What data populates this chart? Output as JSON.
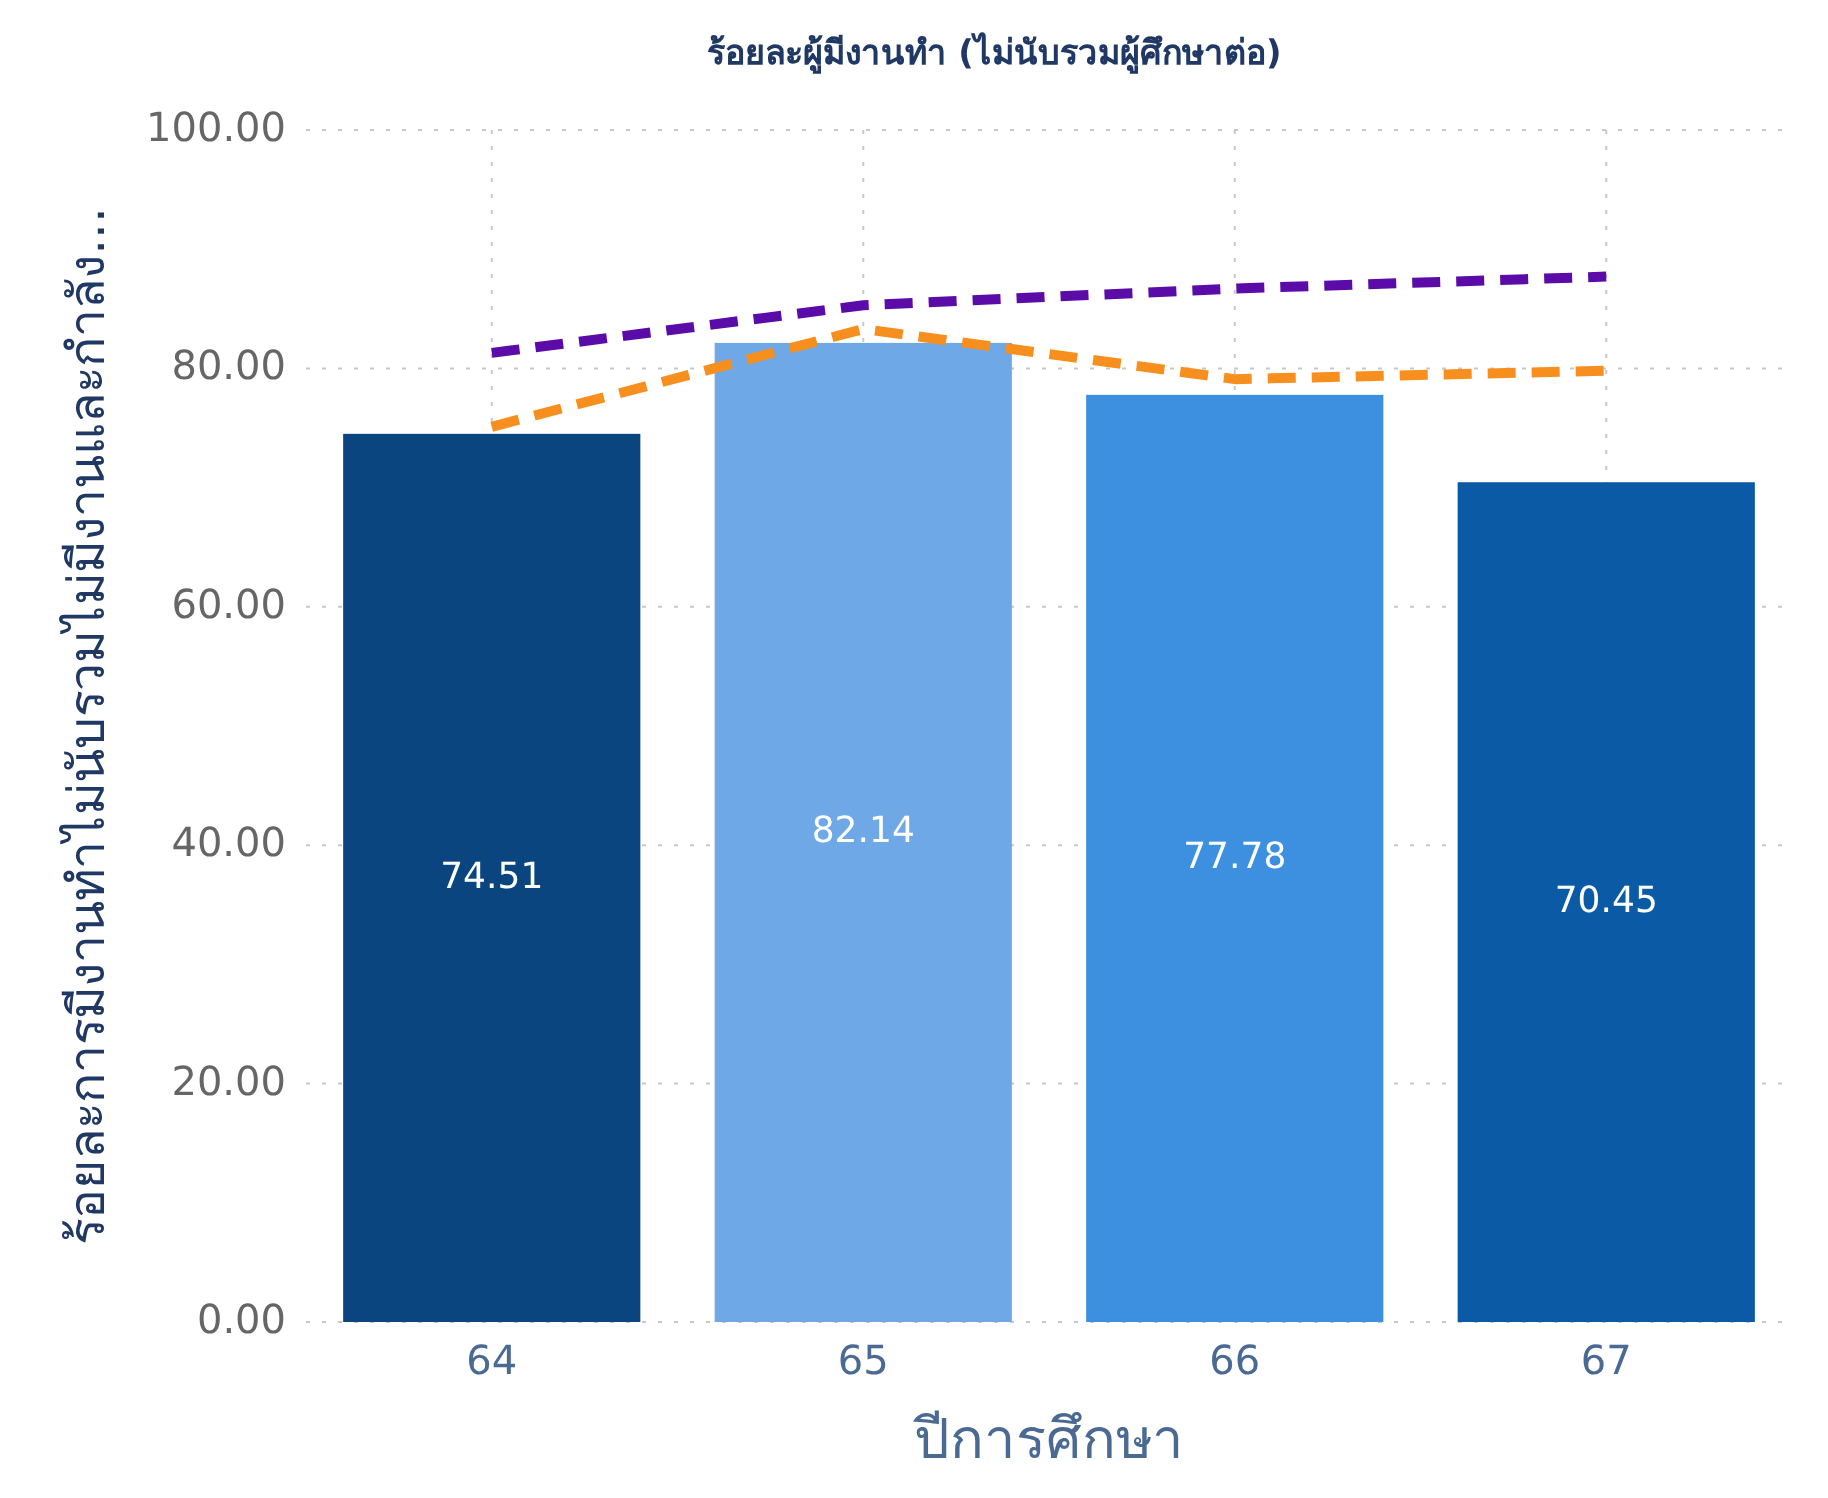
{
  "chart_data": {
    "type": "bar",
    "title": "ร้อยละผู้มีงานทำ (ไม่นับรวมผู้ศึกษาต่อ)",
    "xlabel": "ปีการศึกษา",
    "ylabel": "ร้อยละการมีงานทำไม่นับรวมไม่มีงานและกำลัง...",
    "categories": [
      "64",
      "65",
      "66",
      "67"
    ],
    "series": [
      {
        "colors": [
          "#0a4580",
          "#6fa8e6",
          "#3d8fdf",
          "#0b5aa6"
        ],
        "values": [
          74.51,
          82.14,
          77.78,
          70.45
        ],
        "value_labels": [
          "74.51",
          "82.14",
          "77.78",
          "70.45"
        ]
      },
      {
        "type": "line",
        "color": "#5b0ca8",
        "values": [
          81.3,
          85.3,
          86.7,
          87.7
        ]
      },
      {
        "type": "line",
        "color": "#f78f1e",
        "values": [
          75.1,
          83.3,
          79.1,
          79.8
        ]
      }
    ],
    "ylim": [
      0,
      100
    ],
    "yticks": [
      {
        "value": 0,
        "label": "0.00"
      },
      {
        "value": 20,
        "label": "20.00"
      },
      {
        "value": 40,
        "label": "40.00"
      },
      {
        "value": 60,
        "label": "60.00"
      },
      {
        "value": 80,
        "label": "80.00"
      },
      {
        "value": 100,
        "label": "100.00"
      }
    ],
    "grid": true,
    "line_style": "dashed"
  }
}
